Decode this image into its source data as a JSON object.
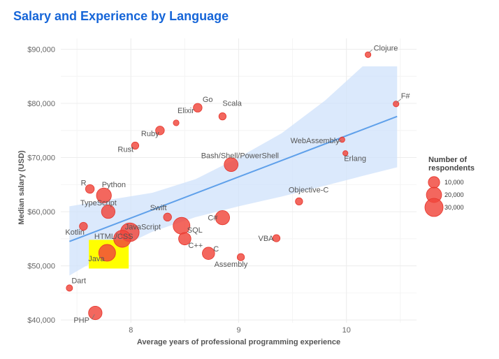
{
  "colors": {
    "title": "#1565d8",
    "point_fill": "#f0453b",
    "point_stroke": "#e5332a",
    "trend": "#5fa0ea",
    "band": "#cfe2fb",
    "grid": "#ececec",
    "highlight": "#ffff00"
  },
  "chart_data": {
    "type": "scatter",
    "title": "Salary and Experience by Language",
    "xlabel": "Average years of professional programming experience",
    "ylabel": "Median salary (USD)",
    "xlim": [
      7.35,
      10.65
    ],
    "ylim": [
      39500,
      92000
    ],
    "xticks": [
      8,
      9,
      10
    ],
    "yticks": [
      40000,
      50000,
      60000,
      70000,
      80000,
      90000
    ],
    "ytick_labels": [
      "$40,000",
      "$50,000",
      "$60,000",
      "$70,000",
      "$80,000",
      "$90,000"
    ],
    "legend": {
      "title_lines": [
        "Number of",
        "respondents"
      ],
      "entries": [
        {
          "label": "10,000",
          "value": 10000
        },
        {
          "label": "20,000",
          "value": 20000
        },
        {
          "label": "30,000",
          "value": 30000
        }
      ],
      "position": "right"
    },
    "trend": {
      "x0": 7.43,
      "y0": 54500,
      "x1": 10.47,
      "y1": 77600,
      "band_upper": [
        [
          7.43,
          61000
        ],
        [
          7.8,
          62200
        ],
        [
          8.2,
          63500
        ],
        [
          8.6,
          66000
        ],
        [
          9.0,
          70000
        ],
        [
          9.4,
          74500
        ],
        [
          9.8,
          80500
        ],
        [
          10.15,
          87000
        ],
        [
          10.47,
          96800
        ]
      ],
      "band_lower": [
        [
          7.43,
          48200
        ],
        [
          7.8,
          52500
        ],
        [
          8.2,
          56300
        ],
        [
          8.6,
          59000
        ],
        [
          9.0,
          61000
        ],
        [
          9.4,
          62800
        ],
        [
          9.8,
          64800
        ],
        [
          10.15,
          66600
        ],
        [
          10.47,
          68200
        ]
      ]
    },
    "highlight": {
      "x0": 7.61,
      "x1": 7.98,
      "y0": 49500,
      "y1": 54800
    },
    "points": [
      {
        "name": "Clojure",
        "x": 10.2,
        "y": 89000,
        "n": 1500
      },
      {
        "name": "F#",
        "x": 10.46,
        "y": 79900,
        "n": 1500
      },
      {
        "name": "Go",
        "x": 8.62,
        "y": 79200,
        "n": 5000
      },
      {
        "name": "Scala",
        "x": 8.85,
        "y": 77600,
        "n": 3000
      },
      {
        "name": "Elixir",
        "x": 8.42,
        "y": 76400,
        "n": 1500
      },
      {
        "name": "Ruby",
        "x": 8.27,
        "y": 75000,
        "n": 5000
      },
      {
        "name": "Rust",
        "x": 8.04,
        "y": 72200,
        "n": 3000
      },
      {
        "name": "WebAssembly",
        "x": 9.96,
        "y": 73300,
        "n": 1200
      },
      {
        "name": "Erlang",
        "x": 9.99,
        "y": 70800,
        "n": 1000
      },
      {
        "name": "Bash/Shell/PowerShell",
        "x": 8.93,
        "y": 68700,
        "n": 16000
      },
      {
        "name": "R",
        "x": 7.62,
        "y": 64200,
        "n": 5000
      },
      {
        "name": "Python",
        "x": 7.75,
        "y": 63000,
        "n": 19000
      },
      {
        "name": "Objective-C",
        "x": 9.56,
        "y": 61900,
        "n": 3000
      },
      {
        "name": "Swift",
        "x": 8.34,
        "y": 59000,
        "n": 4000
      },
      {
        "name": "TypeScript",
        "x": 7.79,
        "y": 60000,
        "n": 15000
      },
      {
        "name": "JavaScript",
        "x": 7.99,
        "y": 56200,
        "n": 32000
      },
      {
        "name": "SQL",
        "x": 8.47,
        "y": 57400,
        "n": 25000
      },
      {
        "name": "C#",
        "x": 8.85,
        "y": 58900,
        "n": 17000
      },
      {
        "name": "Kotlin",
        "x": 7.56,
        "y": 57300,
        "n": 4000
      },
      {
        "name": "HTML/CSS",
        "x": 7.92,
        "y": 55000,
        "n": 26000
      },
      {
        "name": "C++",
        "x": 8.5,
        "y": 55000,
        "n": 12000
      },
      {
        "name": "VBA",
        "x": 9.35,
        "y": 55100,
        "n": 3000
      },
      {
        "name": "Java",
        "x": 7.78,
        "y": 52400,
        "n": 25000
      },
      {
        "name": "C",
        "x": 8.72,
        "y": 52300,
        "n": 12000
      },
      {
        "name": "Assembly",
        "x": 9.02,
        "y": 51600,
        "n": 3000
      },
      {
        "name": "Dart",
        "x": 7.43,
        "y": 45900,
        "n": 2000
      },
      {
        "name": "PHP",
        "x": 7.67,
        "y": 41300,
        "n": 15000
      }
    ]
  }
}
